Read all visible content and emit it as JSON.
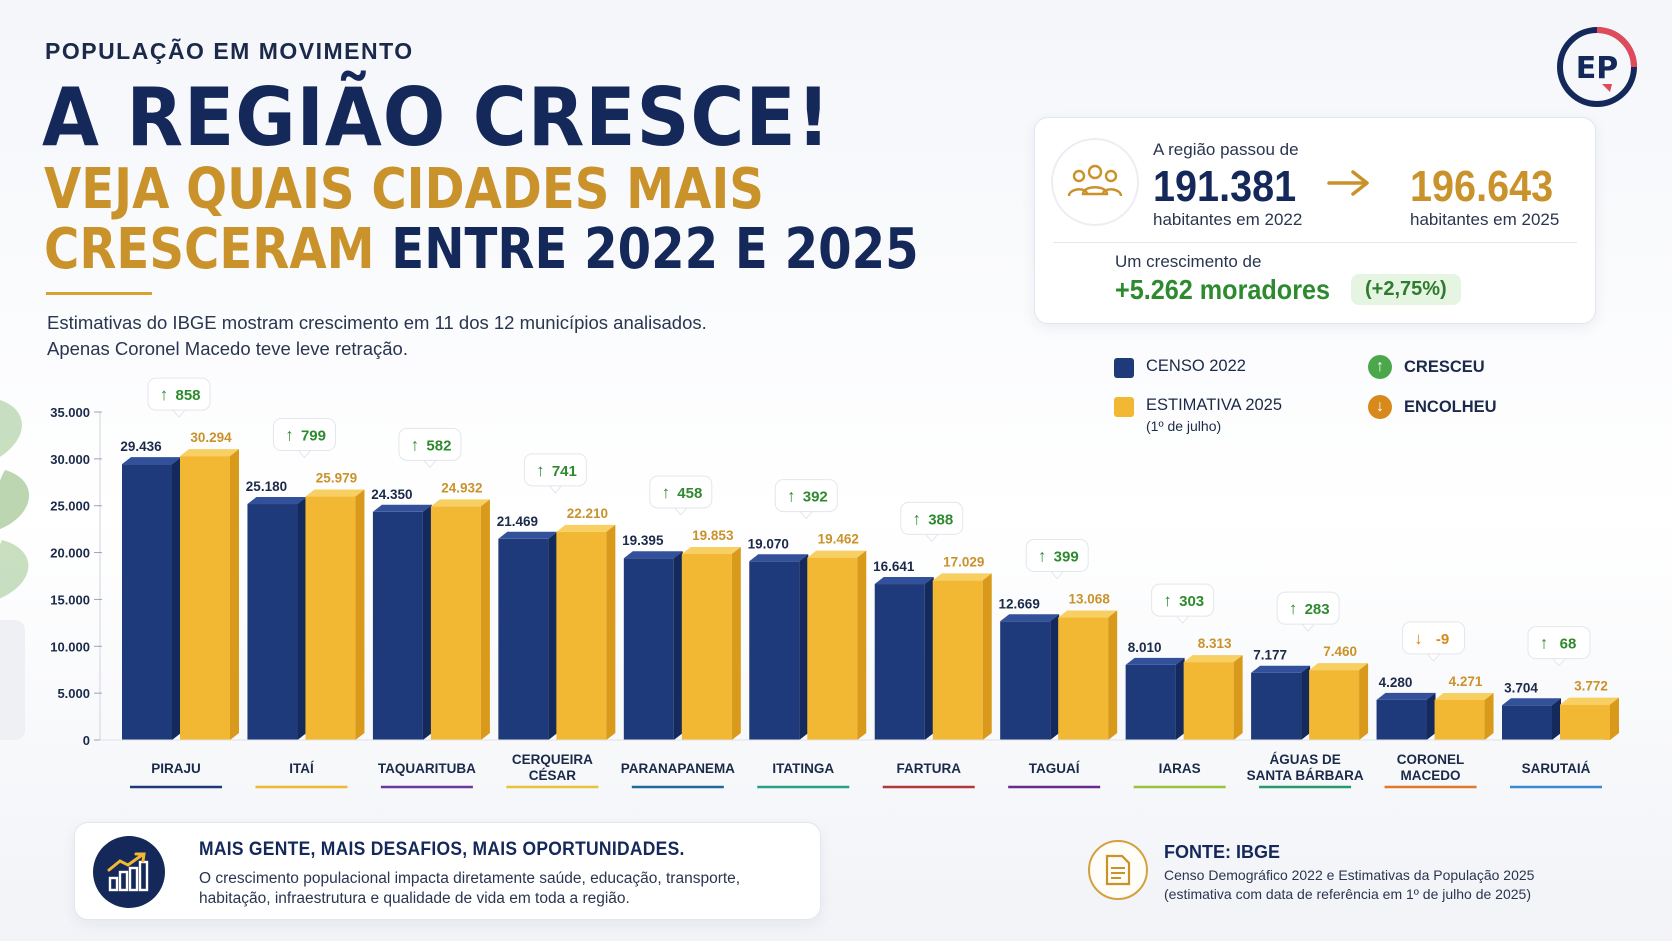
{
  "header": {
    "kicker": "POPULAÇÃO EM MOVIMENTO",
    "title": "A REGIÃO CRESCE!",
    "subtitle_line1": "VEJA QUAIS CIDADES MAIS",
    "subtitle_line2_gold": "CRESCERAM",
    "subtitle_line2_navy": "ENTRE 2022 E 2025",
    "description_line1": "Estimativas do IBGE mostram crescimento em 11 dos 12 municípios analisados.",
    "description_line2": "Apenas Coronel Macedo teve leve retração."
  },
  "logo": {
    "icon": "ep-logo",
    "letters": "EP"
  },
  "summary": {
    "icon": "people-icon",
    "intro": "A região passou de",
    "from_value": "191.381",
    "from_label": "habitantes em 2022",
    "to_value": "196.643",
    "to_label": "habitantes em 2025",
    "growth_label": "Um crescimento de",
    "growth_value": "+5.262 moradores",
    "growth_pct": "(+2,75%)"
  },
  "legend": {
    "census_label": "CENSO 2022",
    "estimate_label": "ESTIMATIVA 2025",
    "estimate_sub": "(1º de julho)",
    "grew_label": "CRESCEU",
    "shrank_label": "ENCOLHEU"
  },
  "colors": {
    "navy": "#1f3a7a",
    "gold": "#f2b833",
    "green": "#2e8a2f",
    "orange": "#d8891c"
  },
  "chart_data": {
    "type": "bar",
    "title": "",
    "xlabel": "",
    "ylabel": "",
    "ylim": [
      0,
      35000
    ],
    "y_ticks": [
      "0",
      "5.000",
      "10.000",
      "15.000",
      "20.000",
      "25.000",
      "30.000",
      "35.000"
    ],
    "categories": [
      "PIRAJU",
      "ITAÍ",
      "TAQUARITUBA",
      "CERQUEIRA CÉSAR",
      "PARANAPANEMA",
      "ITATINGA",
      "FARTURA",
      "TAGUAÍ",
      "IARAS",
      "ÁGUAS DE SANTA BÁRBARA",
      "CORONEL MACEDO",
      "SARUTAIÁ"
    ],
    "category_lines": [
      [
        "PIRAJU"
      ],
      [
        "ITAÍ"
      ],
      [
        "TAQUARITUBA"
      ],
      [
        "CERQUEIRA",
        "CÉSAR"
      ],
      [
        "PARANAPANEMA"
      ],
      [
        "ITATINGA"
      ],
      [
        "FARTURA"
      ],
      [
        "TAGUAÍ"
      ],
      [
        "IARAS"
      ],
      [
        "ÁGUAS DE",
        "SANTA BÁRBARA"
      ],
      [
        "CORONEL",
        "MACEDO"
      ],
      [
        "SARUTAIÁ"
      ]
    ],
    "underline_colors": [
      "#1f3a7a",
      "#f2b833",
      "#6a3a9a",
      "#e8c23a",
      "#1f6a9a",
      "#2aa08a",
      "#b03a3a",
      "#6a2a8a",
      "#9ac23a",
      "#2a9a6a",
      "#e07a2a",
      "#3a8ad0"
    ],
    "series": [
      {
        "name": "CENSO 2022",
        "values": [
          29436,
          25180,
          24350,
          21469,
          19395,
          19070,
          16641,
          12669,
          8010,
          7177,
          4280,
          3704
        ],
        "labels": [
          "29.436",
          "25.180",
          "24.350",
          "21.469",
          "19.395",
          "19.070",
          "16.641",
          "12.669",
          "8.010",
          "7.177",
          "4.280",
          "3.704"
        ]
      },
      {
        "name": "ESTIMATIVA 2025",
        "values": [
          30294,
          25979,
          24932,
          22210,
          19853,
          19462,
          17029,
          13068,
          8313,
          7460,
          4271,
          3772
        ],
        "labels": [
          "30.294",
          "25.979",
          "24.932",
          "22.210",
          "19.853",
          "19.462",
          "17.029",
          "13.068",
          "8.313",
          "7.460",
          "4.271",
          "3.772"
        ]
      }
    ],
    "changes": [
      858,
      799,
      582,
      741,
      458,
      392,
      388,
      399,
      303,
      283,
      -9,
      68
    ],
    "change_labels": [
      "858",
      "799",
      "582",
      "741",
      "458",
      "392",
      "388",
      "399",
      "303",
      "283",
      "-9",
      "68"
    ],
    "grid": false,
    "legend_position": "top-right"
  },
  "footer": {
    "icon": "growth-chart-icon",
    "title": "MAIS GENTE, MAIS DESAFIOS, MAIS OPORTUNIDADES.",
    "text": "O crescimento populacional impacta diretamente saúde, educação, transporte, habitação, infraestrutura e qualidade de vida em toda a região.",
    "source_icon": "document-icon",
    "source_title": "FONTE: IBGE",
    "source_line1": "Censo Demográfico 2022 e Estimativas da População 2025",
    "source_line2": "(estimativa com data de referência em 1º de julho de 2025)"
  }
}
